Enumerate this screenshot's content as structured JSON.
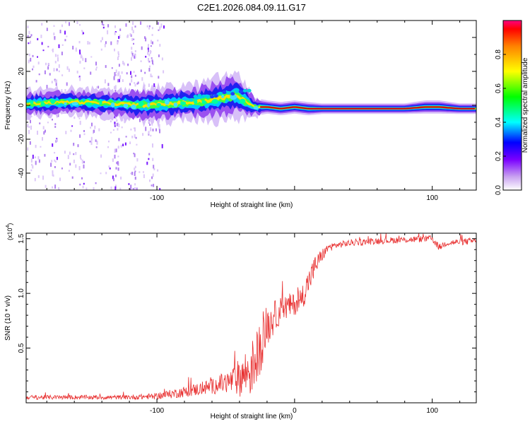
{
  "chart_data": [
    {
      "type": "heatmap",
      "title": "C2E1.2026.084.09.11.G17",
      "xlabel": "Height of straight line (km)",
      "ylabel": "Frequency (Hz)",
      "xlim": [
        -195,
        132
      ],
      "ylim": [
        -50,
        50
      ],
      "x_ticks": [
        -100,
        0,
        100
      ],
      "x_tick_labels": [
        "-100",
        "",
        "100"
      ],
      "y_ticks": [
        -40,
        -20,
        0,
        20,
        40
      ],
      "y_tick_labels": [
        "-40",
        "-20",
        "0",
        "20",
        "40"
      ],
      "colorbar": {
        "label": "Normalized spectral amplitude",
        "range": [
          0,
          1
        ],
        "ticks": [
          0.0,
          0.2,
          0.4,
          0.6,
          0.8
        ],
        "tick_labels": [
          "0.0",
          "0.2",
          "0.4",
          "0.6",
          "0.8"
        ]
      },
      "trace": {
        "x": [
          -195,
          -160,
          -130,
          -110,
          -90,
          -70,
          -55,
          -42,
          -35,
          -28,
          -20,
          -10,
          0,
          10,
          20,
          40,
          60,
          80,
          95,
          105,
          120,
          132
        ],
        "center": [
          1,
          2,
          1,
          0,
          1,
          2,
          4,
          6,
          2,
          -1,
          -1,
          -2,
          -1,
          -2,
          -2,
          -2,
          -2,
          -2,
          -1,
          -1,
          -2,
          -2
        ],
        "width": [
          3,
          3,
          3,
          4,
          4,
          4,
          5,
          5,
          4,
          2,
          1.5,
          1.5,
          1.5,
          1.5,
          1.2,
          1.2,
          1.2,
          1.2,
          1.5,
          1.5,
          1.2,
          1.2
        ]
      },
      "scatter_x_range": [
        -195,
        -95
      ]
    },
    {
      "type": "line",
      "title": "",
      "xlabel": "Height of straight line (km)",
      "ylabel": "SNR (10 * v/v)",
      "y_multiplier": "(x10",
      "y_multiplier_exp": "4",
      "xlim": [
        -195,
        132
      ],
      "ylim": [
        0,
        1.55
      ],
      "x_ticks": [
        -100,
        0,
        100
      ],
      "x_tick_labels": [
        "-100",
        "0",
        "100"
      ],
      "y_ticks": [
        0.5,
        1.0,
        1.5
      ],
      "y_tick_labels": [
        "0.5",
        "1.0",
        "1.5"
      ],
      "series": [
        {
          "name": "SNR",
          "color": "#e83030",
          "x": [
            -195,
            -150,
            -120,
            -100,
            -80,
            -60,
            -45,
            -38,
            -32,
            -28,
            -24,
            -20,
            -15,
            -10,
            -5,
            0,
            5,
            10,
            15,
            20,
            25,
            30,
            40,
            60,
            80,
            100,
            105,
            110,
            120,
            132
          ],
          "values": [
            0.05,
            0.05,
            0.05,
            0.06,
            0.1,
            0.15,
            0.2,
            0.25,
            0.3,
            0.4,
            0.55,
            0.7,
            0.78,
            0.85,
            0.88,
            0.9,
            0.95,
            1.1,
            1.25,
            1.35,
            1.42,
            1.44,
            1.46,
            1.48,
            1.49,
            1.5,
            1.42,
            1.46,
            1.47,
            1.48
          ],
          "noise": [
            0.02,
            0.02,
            0.02,
            0.03,
            0.05,
            0.07,
            0.12,
            0.2,
            0.25,
            0.25,
            0.25,
            0.2,
            0.15,
            0.12,
            0.12,
            0.1,
            0.12,
            0.12,
            0.1,
            0.06,
            0.04,
            0.03,
            0.03,
            0.03,
            0.03,
            0.03,
            0.03,
            0.03,
            0.03,
            0.03
          ]
        }
      ]
    }
  ]
}
